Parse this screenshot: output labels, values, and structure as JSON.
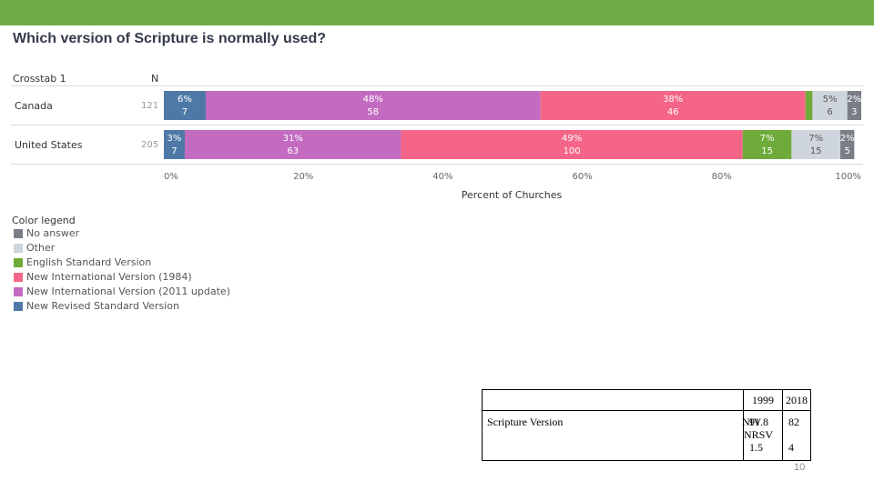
{
  "slide": {
    "title": "Which version of Scripture is normally used?",
    "page_number": "10",
    "accent_color": "#70ad47"
  },
  "crosstab": {
    "header_label": "Crosstab 1",
    "n_header": "N",
    "rows": [
      {
        "label": "Canada",
        "n": "121"
      },
      {
        "label": "United States",
        "n": "205"
      }
    ]
  },
  "chart_data": {
    "type": "bar",
    "orientation": "horizontal",
    "stacked": true,
    "xlabel": "Percent of Churches",
    "xlim": [
      0,
      100
    ],
    "x_ticks": [
      "0%",
      "20%",
      "40%",
      "60%",
      "80%",
      "100%"
    ],
    "categories": [
      "Canada",
      "United States"
    ],
    "series": [
      {
        "name": "New Revised Standard Version",
        "color": "#4e79a7",
        "values": [
          6,
          3
        ],
        "labels": [
          "6%",
          "3%"
        ],
        "counts": [
          "7",
          "7"
        ]
      },
      {
        "name": "New International Version (2011 update)",
        "color": "#c36bc1",
        "values": [
          48,
          31
        ],
        "labels": [
          "48%",
          "31%"
        ],
        "counts": [
          "58",
          "63"
        ]
      },
      {
        "name": "New International Version (1984)",
        "color": "#f46587",
        "values": [
          38,
          49
        ],
        "labels": [
          "38%",
          "49%"
        ],
        "counts": [
          "46",
          "100"
        ]
      },
      {
        "name": "English Standard Version",
        "color": "#6fab3a",
        "values": [
          1,
          7
        ],
        "labels": [
          "",
          "7%"
        ],
        "counts": [
          "",
          "15"
        ]
      },
      {
        "name": "Other",
        "color": "#cfd5dc",
        "values": [
          5,
          7
        ],
        "labels": [
          "5%",
          "7%"
        ],
        "counts": [
          "6",
          "15"
        ]
      },
      {
        "name": "No answer",
        "color": "#7a7e87",
        "values": [
          2,
          2
        ],
        "labels": [
          "2%",
          "2%"
        ],
        "counts": [
          "3",
          "5"
        ]
      }
    ]
  },
  "legend": {
    "title": "Color legend",
    "items": [
      {
        "label": "No answer",
        "color": "#7a7e87"
      },
      {
        "label": "Other",
        "color": "#cfd5dc"
      },
      {
        "label": "English Standard Version",
        "color": "#6fab3a"
      },
      {
        "label": "New International Version (1984)",
        "color": "#f46587"
      },
      {
        "label": "New International Version (2011 update)",
        "color": "#c36bc1"
      },
      {
        "label": "New Revised Standard Version",
        "color": "#4e79a7"
      }
    ]
  },
  "summary_table": {
    "header_years": [
      "1999",
      "2018"
    ],
    "row_label": "Scripture Version",
    "versions": [
      "NIV",
      "NRSV"
    ],
    "values": [
      [
        "91.8",
        "82"
      ],
      [
        "1.5",
        "4"
      ]
    ]
  }
}
